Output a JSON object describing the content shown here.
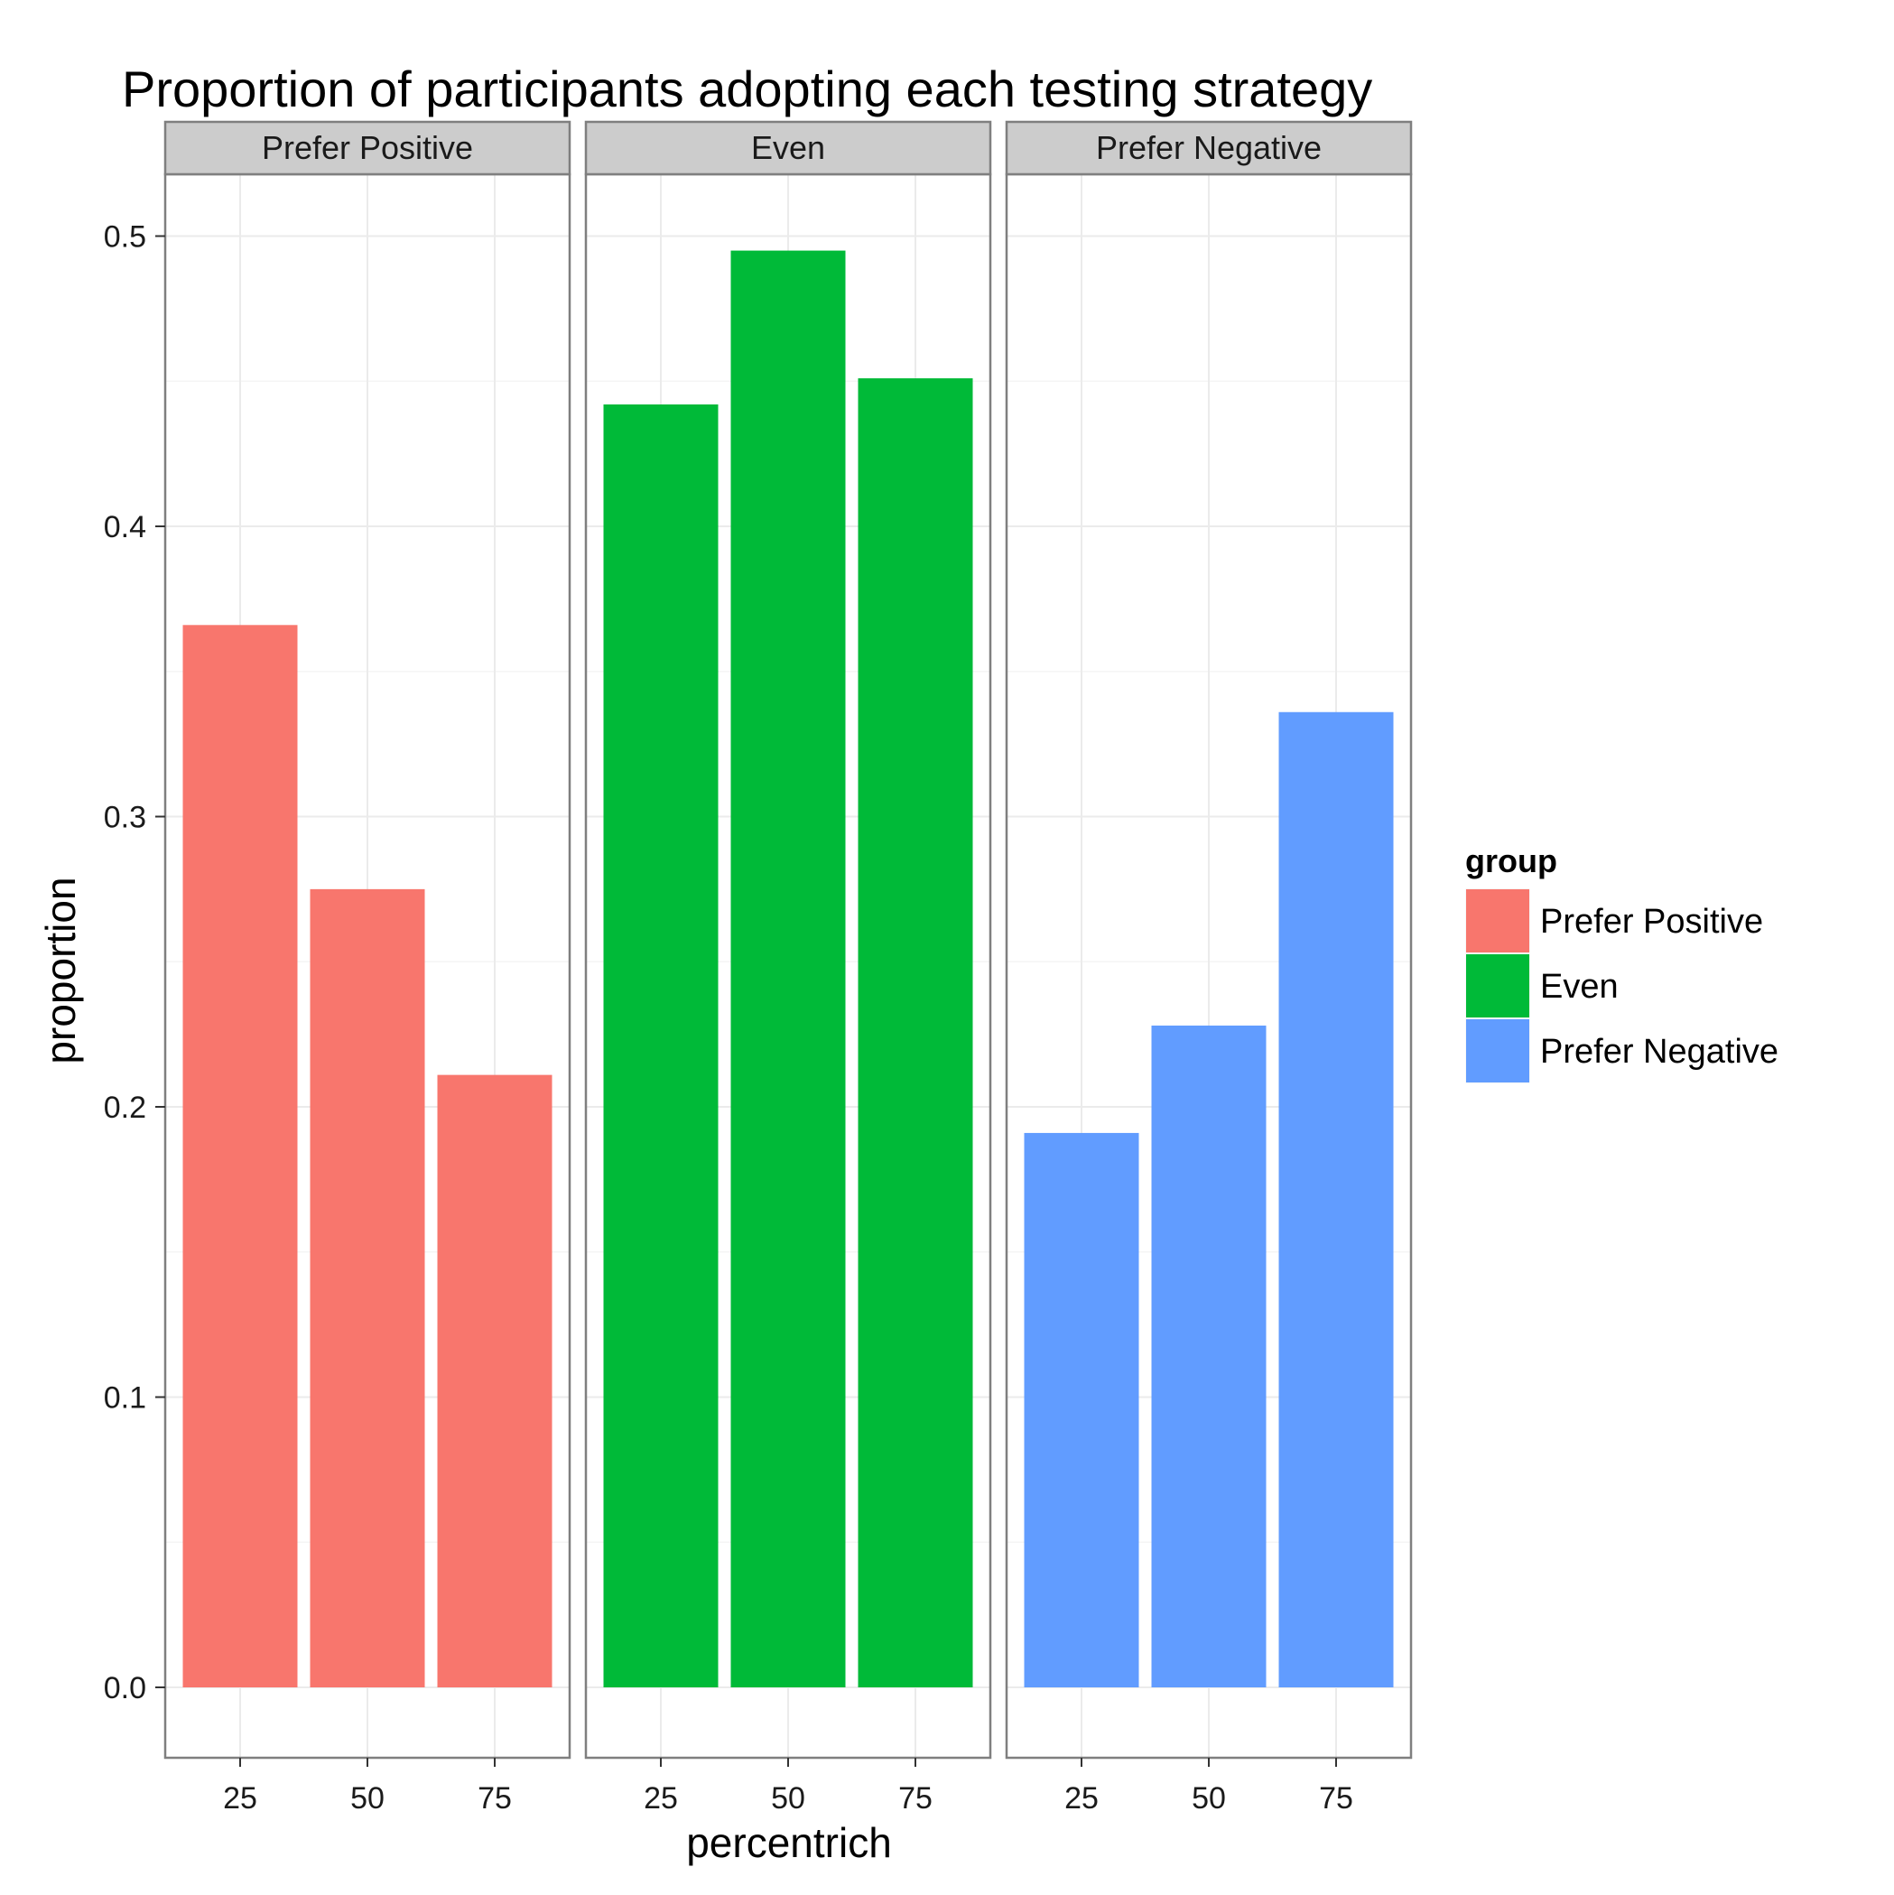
{
  "chart_data": {
    "type": "bar",
    "title": "Proportion of participants adopting each testing strategy",
    "xlabel": "percentrich",
    "ylabel": "proportion",
    "categories": [
      "25",
      "50",
      "75"
    ],
    "facets": [
      "Prefer Positive",
      "Even",
      "Prefer Negative"
    ],
    "series": [
      {
        "name": "Prefer Positive",
        "color": "#F8766D",
        "values": [
          0.366,
          0.275,
          0.211
        ]
      },
      {
        "name": "Even",
        "color": "#00BA38",
        "values": [
          0.442,
          0.495,
          0.451
        ]
      },
      {
        "name": "Prefer Negative",
        "color": "#619CFF",
        "values": [
          0.191,
          0.228,
          0.336
        ]
      }
    ],
    "ylim": [
      -0.024,
      0.521
    ],
    "yticks": [
      0.0,
      0.1,
      0.2,
      0.3,
      0.4,
      0.5
    ],
    "ytick_labels": [
      "0.0",
      "0.1",
      "0.2",
      "0.3",
      "0.4",
      "0.5"
    ],
    "grid": true,
    "legend": {
      "title": "group",
      "position": "right"
    }
  }
}
